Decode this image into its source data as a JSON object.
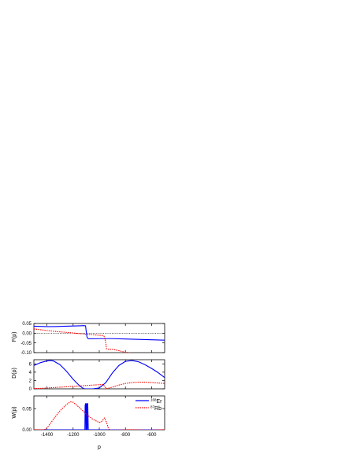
{
  "chart_data": [
    {
      "type": "line",
      "ylabel": "F(p)",
      "xlim": [
        -1500,
        -500
      ],
      "ylim": [
        -0.1,
        0.05
      ],
      "yticks": [
        "0.05",
        "0.00",
        "-0.05",
        "-0.10"
      ],
      "yticks_values": [
        0.05,
        0.0,
        -0.05,
        -0.1
      ],
      "reference_line": 0.0,
      "series": [
        {
          "name": "168Er",
          "color": "#0000ff",
          "style": "solid",
          "x": [
            -1500,
            -1450,
            -1400,
            -1350,
            -1300,
            -1250,
            -1200,
            -1150,
            -1120,
            -1105,
            -1100,
            -1095,
            -1090,
            -1085,
            -1080,
            -1060,
            -1000,
            -900,
            -800,
            -700,
            -600,
            -500
          ],
          "y": [
            0.036,
            0.035,
            0.034,
            0.034,
            0.035,
            0.036,
            0.037,
            0.038,
            0.039,
            0.038,
            0.01,
            -0.015,
            -0.025,
            -0.028,
            -0.029,
            -0.029,
            -0.028,
            -0.028,
            -0.03,
            -0.032,
            -0.034,
            -0.036
          ]
        },
        {
          "name": "87Rb",
          "color": "#ff0000",
          "style": "dotted",
          "x": [
            -1500,
            -1450,
            -1400,
            -1350,
            -1300,
            -1250,
            -1200,
            -1150,
            -1100,
            -1050,
            -1000,
            -970,
            -960,
            -950,
            -945,
            -940,
            -930,
            -900,
            -880,
            -850,
            -820,
            -800,
            -770,
            -750
          ],
          "y": [
            0.022,
            0.018,
            0.014,
            0.01,
            0.007,
            0.004,
            0.001,
            -0.002,
            -0.005,
            -0.008,
            -0.011,
            -0.012,
            -0.018,
            -0.05,
            -0.08,
            -0.082,
            -0.083,
            -0.083,
            -0.085,
            -0.09,
            -0.095,
            -0.098,
            -0.1,
            -0.102
          ]
        }
      ]
    },
    {
      "type": "line",
      "ylabel": "D(p)",
      "xlim": [
        -1500,
        -500
      ],
      "ylim": [
        0,
        7
      ],
      "yticks": [
        "6",
        "4",
        "2",
        "0"
      ],
      "yticks_values": [
        6,
        4,
        2,
        0
      ],
      "series": [
        {
          "name": "168Er",
          "color": "#0000ff",
          "style": "solid",
          "x": [
            -1500,
            -1450,
            -1400,
            -1380,
            -1350,
            -1300,
            -1250,
            -1200,
            -1150,
            -1120,
            -1100,
            -1080,
            -1050,
            -1000,
            -950,
            -900,
            -850,
            -800,
            -750,
            -700,
            -650,
            -600,
            -550,
            -500
          ],
          "y": [
            5.6,
            6.3,
            6.7,
            6.8,
            6.7,
            5.8,
            4.2,
            2.3,
            0.7,
            0.05,
            0.0,
            0.0,
            0.0,
            0.2,
            1.5,
            3.8,
            5.6,
            6.6,
            6.8,
            6.5,
            5.8,
            4.9,
            3.9,
            2.7
          ]
        },
        {
          "name": "87Rb",
          "color": "#ff0000",
          "style": "dotted",
          "x": [
            -1500,
            -1450,
            -1400,
            -1350,
            -1300,
            -1250,
            -1200,
            -1150,
            -1100,
            -1050,
            -1000,
            -970,
            -960,
            -950,
            -940,
            -930,
            -900,
            -850,
            -800,
            -750,
            -700,
            -650,
            -600,
            -550,
            -500
          ],
          "y": [
            0.05,
            0.1,
            0.2,
            0.3,
            0.4,
            0.5,
            0.6,
            0.7,
            0.8,
            0.9,
            1.0,
            1.0,
            0.6,
            0.15,
            0.1,
            0.15,
            0.4,
            0.9,
            1.3,
            1.5,
            1.6,
            1.6,
            1.5,
            1.4,
            1.3
          ]
        }
      ]
    },
    {
      "type": "line",
      "ylabel": "W(p)",
      "xlabel": "p",
      "xlim": [
        -1500,
        -500
      ],
      "ylim": [
        0,
        0.08
      ],
      "yticks": [
        "0.05",
        "0.00"
      ],
      "yticks_values": [
        0.05,
        0.0
      ],
      "xticks": [
        "-1400",
        "-1200",
        "-1000",
        "-800",
        "-600"
      ],
      "xticks_values": [
        -1400,
        -1200,
        -1000,
        -800,
        -600
      ],
      "legend_position": "top-right",
      "series": [
        {
          "name": "168Er",
          "color": "#0000ff",
          "style": "solid",
          "x": [
            -1500,
            -1120,
            -1110,
            -1108,
            -1104,
            -1102,
            -1100,
            -1098,
            -1096,
            -1094,
            -1092,
            -1090,
            -1088,
            -1084,
            -1080,
            -500
          ],
          "y": [
            0.0,
            0.0,
            0.0,
            0.058,
            0.062,
            0.0,
            0.0,
            0.06,
            0.062,
            0.0,
            0.0,
            0.058,
            0.062,
            0.0,
            0.0,
            0.0
          ]
        },
        {
          "name": "87Rb",
          "color": "#ff0000",
          "style": "dotted",
          "x": [
            -1500,
            -1420,
            -1400,
            -1350,
            -1300,
            -1250,
            -1220,
            -1200,
            -1150,
            -1100,
            -1050,
            -1000,
            -980,
            -960,
            -945,
            -930,
            -920,
            -900,
            -500
          ],
          "y": [
            0.0,
            0.0,
            0.004,
            0.025,
            0.045,
            0.06,
            0.066,
            0.065,
            0.052,
            0.037,
            0.025,
            0.017,
            0.02,
            0.028,
            0.018,
            0.003,
            0.0,
            0.0,
            0.0
          ]
        }
      ],
      "legend": [
        {
          "sup": "168",
          "label": "Er",
          "color": "#0000ff",
          "style": "solid"
        },
        {
          "sup": "87",
          "label": "Rb",
          "color": "#ff0000",
          "style": "dotted"
        }
      ]
    }
  ]
}
